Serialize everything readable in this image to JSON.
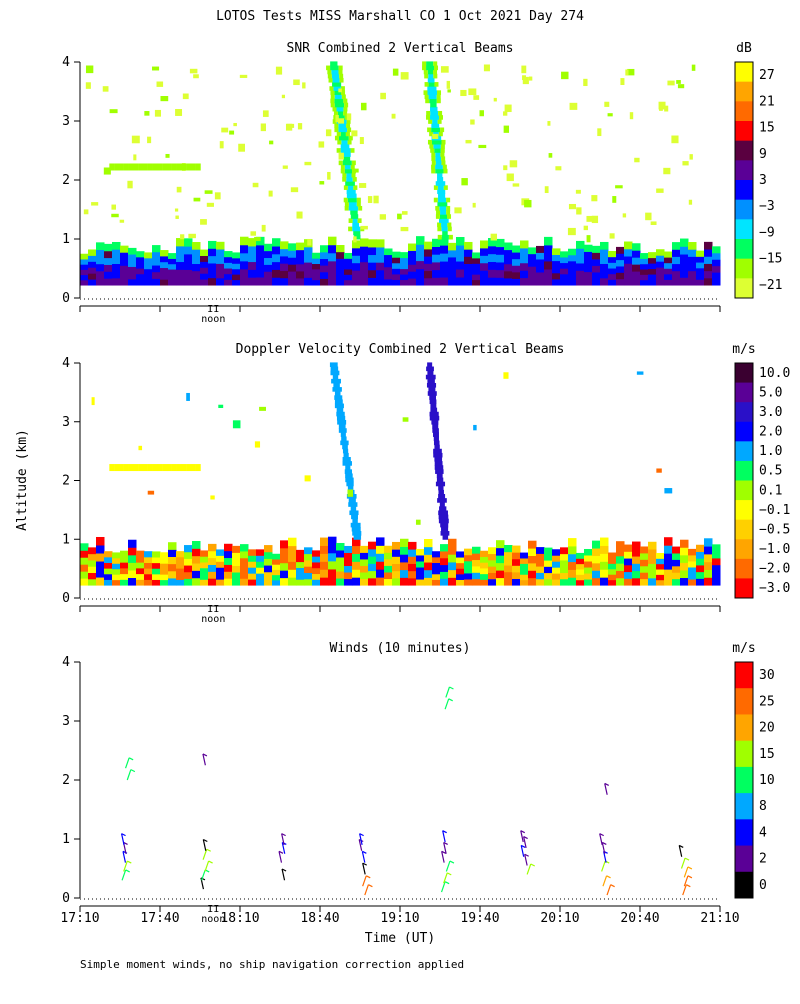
{
  "page_title": "LOTOS Tests MISS Marshall CO   1 Oct 2021 Day 274",
  "shared_ylabel": "Altitude (km)",
  "xlabel": "Time (UT)",
  "noon_label": "noon",
  "noon_mark": "II",
  "x_ticks": [
    "17:10",
    "17:40",
    "18:10",
    "18:40",
    "19:10",
    "19:40",
    "20:10",
    "20:40",
    "21:10"
  ],
  "footnote": "Simple moment winds, no ship navigation correction applied",
  "chart_data": [
    {
      "type": "heatmap",
      "title": "SNR Combined 2 Vertical Beams",
      "unit": "dB",
      "xlim_hours": [
        17.1667,
        21.1667
      ],
      "ylim": [
        0,
        4
      ],
      "y_ticks": [
        "0",
        "1",
        "2",
        "3",
        "4"
      ],
      "colorbar_labels": [
        "27",
        "21",
        "15",
        "9",
        "3",
        "−3",
        "−9",
        "−15",
        "−21"
      ],
      "colorbar_colors": [
        "#ffff00",
        "#ffa500",
        "#ff6a00",
        "#ff0000",
        "#5a0040",
        "#5a0096",
        "#0000ff",
        "#0090ff",
        "#00e5ff",
        "#00ff60",
        "#a0ff00",
        "#ddff33"
      ]
    },
    {
      "type": "heatmap",
      "title": "Doppler Velocity Combined 2 Vertical Beams",
      "unit": "m/s",
      "xlim_hours": [
        17.1667,
        21.1667
      ],
      "ylim": [
        0,
        4
      ],
      "y_ticks": [
        "0",
        "1",
        "2",
        "3",
        "4"
      ],
      "colorbar_labels": [
        "10.0",
        "5.0",
        "3.0",
        "2.0",
        "1.0",
        "0.5",
        "0.1",
        "−0.1",
        "−0.5",
        "−1.0",
        "−2.0",
        "−3.0"
      ],
      "colorbar_colors": [
        "#3a0030",
        "#5a0096",
        "#2a10c8",
        "#0000ff",
        "#00a8ff",
        "#00ff60",
        "#a0ff00",
        "#ffff00",
        "#ffd000",
        "#ffa500",
        "#ff6a00",
        "#ff0000"
      ]
    },
    {
      "type": "scatter",
      "title": "Winds (10 minutes)",
      "unit": "m/s",
      "xlim_hours": [
        17.1667,
        21.1667
      ],
      "ylim": [
        0,
        4
      ],
      "y_ticks": [
        "0",
        "1",
        "2",
        "3",
        "4"
      ],
      "colorbar_labels": [
        "30",
        "25",
        "20",
        "15",
        "10",
        "8",
        "4",
        "2",
        "0"
      ],
      "colorbar_colors": [
        "#ff0000",
        "#ff6a00",
        "#ffa500",
        "#a0ff00",
        "#00ff60",
        "#00a8ff",
        "#0000ff",
        "#5a0096",
        "#000000"
      ],
      "profile_times": [
        "17:30",
        "18:00",
        "18:30",
        "19:00",
        "19:30",
        "20:00",
        "20:30",
        "21:00"
      ],
      "barbs": [
        {
          "t": 17.5,
          "alt": 0.3,
          "speed": 14
        },
        {
          "t": 17.5,
          "alt": 0.45,
          "speed": 15
        },
        {
          "t": 17.5,
          "alt": 0.6,
          "speed": 4
        },
        {
          "t": 17.5,
          "alt": 0.75,
          "speed": 3
        },
        {
          "t": 17.5,
          "alt": 0.9,
          "speed": 4
        },
        {
          "t": 17.5,
          "alt": 2.0,
          "speed": 12
        },
        {
          "t": 17.5,
          "alt": 2.2,
          "speed": 11
        },
        {
          "t": 18.0,
          "alt": 0.15,
          "speed": 1
        },
        {
          "t": 18.0,
          "alt": 0.3,
          "speed": 14
        },
        {
          "t": 18.0,
          "alt": 0.45,
          "speed": 15
        },
        {
          "t": 18.0,
          "alt": 0.65,
          "speed": 15
        },
        {
          "t": 18.0,
          "alt": 0.8,
          "speed": 0
        },
        {
          "t": 18.0,
          "alt": 2.25,
          "speed": 3
        },
        {
          "t": 18.5,
          "alt": 0.3,
          "speed": 1
        },
        {
          "t": 18.5,
          "alt": 0.6,
          "speed": 3
        },
        {
          "t": 18.5,
          "alt": 0.75,
          "speed": 4
        },
        {
          "t": 18.5,
          "alt": 0.9,
          "speed": 3
        },
        {
          "t": 19.0,
          "alt": 0.05,
          "speed": 25
        },
        {
          "t": 19.0,
          "alt": 0.2,
          "speed": 25
        },
        {
          "t": 19.0,
          "alt": 0.4,
          "speed": 1
        },
        {
          "t": 19.0,
          "alt": 0.6,
          "speed": 4
        },
        {
          "t": 19.0,
          "alt": 0.8,
          "speed": 3
        },
        {
          "t": 19.0,
          "alt": 0.9,
          "speed": 4
        },
        {
          "t": 19.5,
          "alt": 0.1,
          "speed": 14
        },
        {
          "t": 19.5,
          "alt": 0.25,
          "speed": 15
        },
        {
          "t": 19.5,
          "alt": 0.45,
          "speed": 14
        },
        {
          "t": 19.5,
          "alt": 0.6,
          "speed": 3
        },
        {
          "t": 19.5,
          "alt": 0.75,
          "speed": 3
        },
        {
          "t": 19.5,
          "alt": 0.95,
          "speed": 4
        },
        {
          "t": 19.5,
          "alt": 3.2,
          "speed": 13
        },
        {
          "t": 19.5,
          "alt": 3.4,
          "speed": 12
        },
        {
          "t": 20.0,
          "alt": 0.4,
          "speed": 15
        },
        {
          "t": 20.0,
          "alt": 0.55,
          "speed": 3
        },
        {
          "t": 20.0,
          "alt": 0.7,
          "speed": 4
        },
        {
          "t": 20.0,
          "alt": 0.85,
          "speed": 3
        },
        {
          "t": 20.0,
          "alt": 0.95,
          "speed": 3
        },
        {
          "t": 20.5,
          "alt": 0.05,
          "speed": 25
        },
        {
          "t": 20.5,
          "alt": 0.2,
          "speed": 24
        },
        {
          "t": 20.5,
          "alt": 0.45,
          "speed": 15
        },
        {
          "t": 20.5,
          "alt": 0.6,
          "speed": 4
        },
        {
          "t": 20.5,
          "alt": 0.75,
          "speed": 3
        },
        {
          "t": 20.5,
          "alt": 0.9,
          "speed": 3
        },
        {
          "t": 20.5,
          "alt": 1.75,
          "speed": 3
        },
        {
          "t": 21.0,
          "alt": 0.05,
          "speed": 25
        },
        {
          "t": 21.0,
          "alt": 0.2,
          "speed": 25
        },
        {
          "t": 21.0,
          "alt": 0.35,
          "speed": 24
        },
        {
          "t": 21.0,
          "alt": 0.5,
          "speed": 15
        },
        {
          "t": 21.0,
          "alt": 0.7,
          "speed": 1
        }
      ]
    }
  ]
}
